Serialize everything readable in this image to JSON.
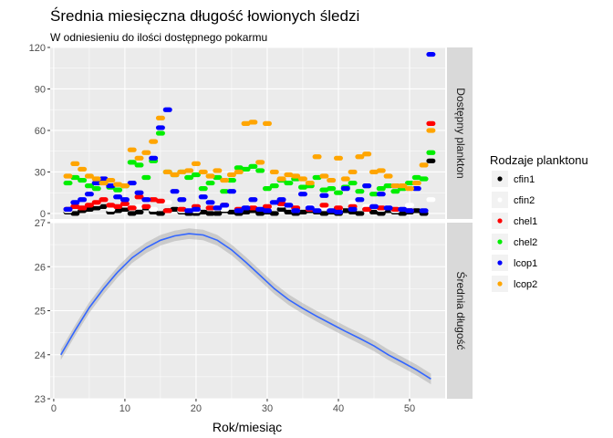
{
  "chart_data": {
    "type": "scatter+smooth (faceted)",
    "title": "Średnia miesięczna długość łowionych śledzi",
    "subtitle": "W odniesieniu do ilości dostępnego pokarmu",
    "xlabel": "Rok/miesiąc",
    "xlim": [
      -0.5,
      55
    ],
    "x_ticks": [
      "0",
      "10",
      "20",
      "30",
      "40",
      "50"
    ],
    "grid": true,
    "legend": {
      "title": "Rodzaje planktonu",
      "position": "right",
      "entries": [
        {
          "label": "cfin1",
          "color": "#000000"
        },
        {
          "label": "cfin2",
          "color": "#ffffff"
        },
        {
          "label": "chel1",
          "color": "#ff0000"
        },
        {
          "label": "chel2",
          "color": "#00ee00"
        },
        {
          "label": "lcop1",
          "color": "#0000ff"
        },
        {
          "label": "lcop2",
          "color": "#ffa500"
        }
      ]
    },
    "facets": [
      {
        "strip": "Dostępny plankton",
        "ylim": [
          -4,
          120
        ],
        "y_ticks": [
          "0",
          "30",
          "60",
          "90",
          "120"
        ],
        "series": [
          {
            "name": "cfin1",
            "color": "#000000",
            "x": [
              2,
              3,
              4,
              5,
              6,
              7,
              8,
              9,
              10,
              11,
              12,
              13,
              14,
              15,
              16,
              17,
              18,
              19,
              20,
              21,
              22,
              23,
              24,
              25,
              26,
              27,
              28,
              29,
              30,
              31,
              32,
              33,
              34,
              35,
              36,
              37,
              38,
              39,
              40,
              41,
              42,
              43,
              44,
              45,
              46,
              47,
              48,
              49,
              50,
              51,
              52,
              53
            ],
            "y": [
              1,
              0,
              2,
              3,
              4,
              5,
              1,
              2,
              3,
              0,
              1,
              4,
              1,
              0,
              2,
              3,
              1,
              0,
              0,
              1,
              0,
              0,
              2,
              1,
              0,
              1,
              2,
              0,
              1,
              0,
              3,
              1,
              0,
              1,
              2,
              1,
              0,
              1,
              0,
              2,
              1,
              0,
              3,
              1,
              0,
              2,
              1,
              0,
              1,
              2,
              0,
              38
            ]
          },
          {
            "name": "cfin2",
            "color": "#ffffff",
            "x": [
              2,
              4,
              6,
              8,
              10,
              12,
              14,
              16,
              18,
              20,
              22,
              24,
              26,
              28,
              30,
              32,
              34,
              36,
              38,
              40,
              42,
              44,
              46,
              48,
              50,
              53
            ],
            "y": [
              2,
              4,
              7,
              3,
              6,
              5,
              3,
              8,
              2,
              2,
              4,
              3,
              2,
              5,
              3,
              6,
              2,
              5,
              4,
              3,
              8,
              5,
              3,
              2,
              6,
              10
            ]
          },
          {
            "name": "chel1",
            "color": "#ff0000",
            "x": [
              2,
              3,
              4,
              5,
              6,
              7,
              8,
              9,
              10,
              11,
              12,
              13,
              14,
              15,
              16,
              18,
              20,
              22,
              24,
              26,
              28,
              30,
              32,
              34,
              36,
              38,
              40,
              42,
              44,
              46,
              48,
              50,
              53
            ],
            "y": [
              3,
              5,
              4,
              6,
              8,
              10,
              6,
              5,
              7,
              4,
              12,
              5,
              10,
              9,
              2,
              3,
              5,
              4,
              6,
              3,
              4,
              5,
              7,
              4,
              3,
              6,
              4,
              5,
              3,
              4,
              3,
              2,
              65
            ]
          },
          {
            "name": "chel2",
            "color": "#00ee00",
            "x": [
              2,
              3,
              4,
              5,
              6,
              7,
              8,
              9,
              10,
              11,
              12,
              13,
              14,
              15,
              16,
              17,
              18,
              19,
              20,
              21,
              22,
              23,
              24,
              25,
              26,
              27,
              28,
              29,
              30,
              31,
              32,
              33,
              34,
              35,
              36,
              37,
              38,
              39,
              40,
              41,
              42,
              43,
              44,
              45,
              46,
              47,
              48,
              49,
              50,
              51,
              52,
              53
            ],
            "y": [
              22,
              26,
              24,
              20,
              18,
              23,
              19,
              17,
              20,
              37,
              35,
              26,
              38,
              58,
              30,
              28,
              30,
              26,
              28,
              18,
              22,
              26,
              16,
              24,
              33,
              32,
              34,
              31,
              18,
              20,
              24,
              22,
              25,
              19,
              20,
              26,
              17,
              18,
              15,
              19,
              22,
              16,
              20,
              14,
              18,
              20,
              16,
              18,
              22,
              26,
              25,
              44
            ]
          },
          {
            "name": "lcop1",
            "color": "#0000ff",
            "x": [
              2,
              3,
              4,
              5,
              6,
              7,
              8,
              9,
              10,
              11,
              12,
              13,
              14,
              15,
              16,
              17,
              18,
              19,
              20,
              21,
              22,
              23,
              24,
              25,
              26,
              27,
              28,
              29,
              30,
              31,
              32,
              33,
              34,
              35,
              36,
              37,
              38,
              39,
              40,
              41,
              42,
              43,
              44,
              45,
              46,
              47,
              48,
              49,
              50,
              51,
              52,
              53
            ],
            "y": [
              3,
              8,
              10,
              14,
              22,
              25,
              20,
              12,
              10,
              22,
              15,
              10,
              40,
              62,
              75,
              16,
              10,
              2,
              3,
              12,
              8,
              4,
              6,
              16,
              2,
              4,
              10,
              3,
              2,
              8,
              10,
              6,
              2,
              14,
              4,
              2,
              13,
              2,
              1,
              18,
              3,
              10,
              20,
              5,
              14,
              4,
              20,
              3,
              2,
              18,
              2,
              115
            ]
          },
          {
            "name": "lcop2",
            "color": "#ffa500",
            "x": [
              2,
              3,
              4,
              5,
              6,
              7,
              8,
              9,
              10,
              11,
              12,
              13,
              14,
              15,
              16,
              17,
              18,
              19,
              20,
              21,
              22,
              23,
              24,
              25,
              26,
              27,
              28,
              29,
              30,
              31,
              32,
              33,
              34,
              35,
              36,
              37,
              38,
              39,
              40,
              41,
              42,
              43,
              44,
              45,
              46,
              47,
              48,
              49,
              50,
              51,
              52,
              53
            ],
            "y": [
              27,
              36,
              32,
              27,
              25,
              22,
              24,
              21,
              20,
              46,
              40,
              44,
              52,
              69,
              30,
              28,
              30,
              31,
              36,
              30,
              27,
              31,
              24,
              28,
              30,
              65,
              66,
              37,
              65,
              30,
              25,
              28,
              27,
              25,
              22,
              41,
              27,
              24,
              40,
              25,
              30,
              41,
              43,
              30,
              31,
              27,
              20,
              20,
              18,
              22,
              35,
              60
            ]
          }
        ]
      },
      {
        "strip": "Średnia długość",
        "ylim": [
          23,
          27
        ],
        "y_ticks": [
          "23",
          "24",
          "25",
          "26",
          "27"
        ],
        "series": [
          {
            "name": "smooth",
            "color": "#3366ff",
            "x": [
              1,
              3,
              5,
              7,
              9,
              11,
              13,
              15,
              17,
              19,
              21,
              23,
              25,
              27,
              29,
              31,
              33,
              35,
              37,
              39,
              41,
              43,
              45,
              47,
              49,
              51,
              53
            ],
            "y": [
              24.0,
              24.55,
              25.07,
              25.5,
              25.88,
              26.2,
              26.43,
              26.6,
              26.7,
              26.75,
              26.72,
              26.6,
              26.38,
              26.1,
              25.8,
              25.5,
              25.25,
              25.05,
              24.87,
              24.7,
              24.53,
              24.37,
              24.2,
              24.0,
              23.83,
              23.65,
              23.45
            ],
            "band": 0.12
          }
        ]
      }
    ]
  }
}
